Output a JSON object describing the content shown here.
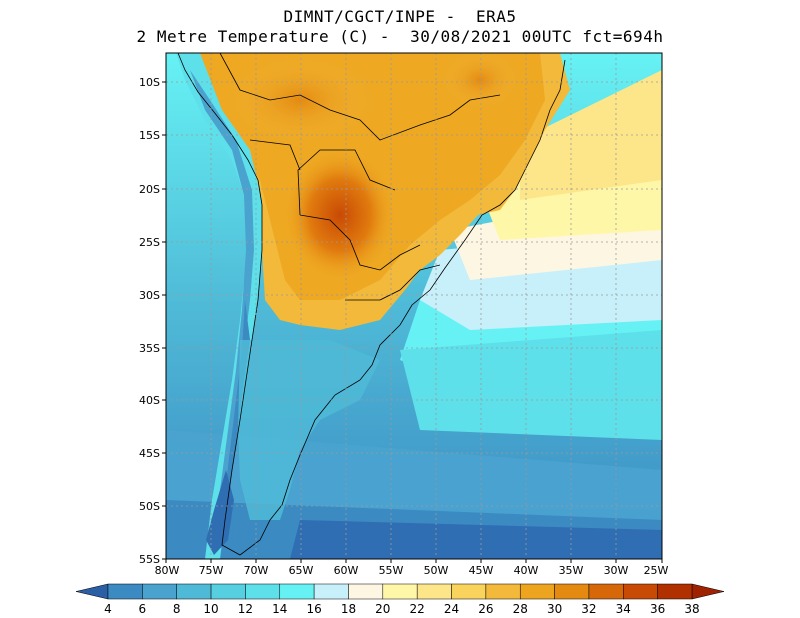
{
  "title": {
    "line1": "DIMNT/CGCT/INPE -  ERA5",
    "line2": "2 Metre Temperature (C) -  30/08/2021 00UTC fct=694h"
  },
  "map": {
    "variable": "2 Metre Temperature",
    "units": "C",
    "lat_labels": [
      "10S",
      "15S",
      "20S",
      "25S",
      "30S",
      "35S",
      "40S",
      "45S",
      "50S",
      "55S"
    ],
    "lon_labels": [
      "80W",
      "75W",
      "70W",
      "65W",
      "60W",
      "55W",
      "50W",
      "45W",
      "40W",
      "35W",
      "30W",
      "25W"
    ]
  },
  "colorbar": {
    "labels": [
      "4",
      "6",
      "8",
      "10",
      "12",
      "14",
      "16",
      "18",
      "20",
      "22",
      "24",
      "26",
      "28",
      "30",
      "32",
      "34",
      "36",
      "38"
    ],
    "colors": [
      "#2f6eb3",
      "#3b8ac2",
      "#4aa3cf",
      "#4fbad7",
      "#56cfe0",
      "#5ee0ea",
      "#66f2f4",
      "#c8f0fb",
      "#fdf6e3",
      "#fff7a8",
      "#fde68a",
      "#f9d35b",
      "#f2b93a",
      "#eda41f",
      "#e48a10",
      "#d7680a",
      "#c94a05",
      "#b13000"
    ],
    "low_color": "#2a5fa5",
    "high_color": "#9f2300"
  }
}
